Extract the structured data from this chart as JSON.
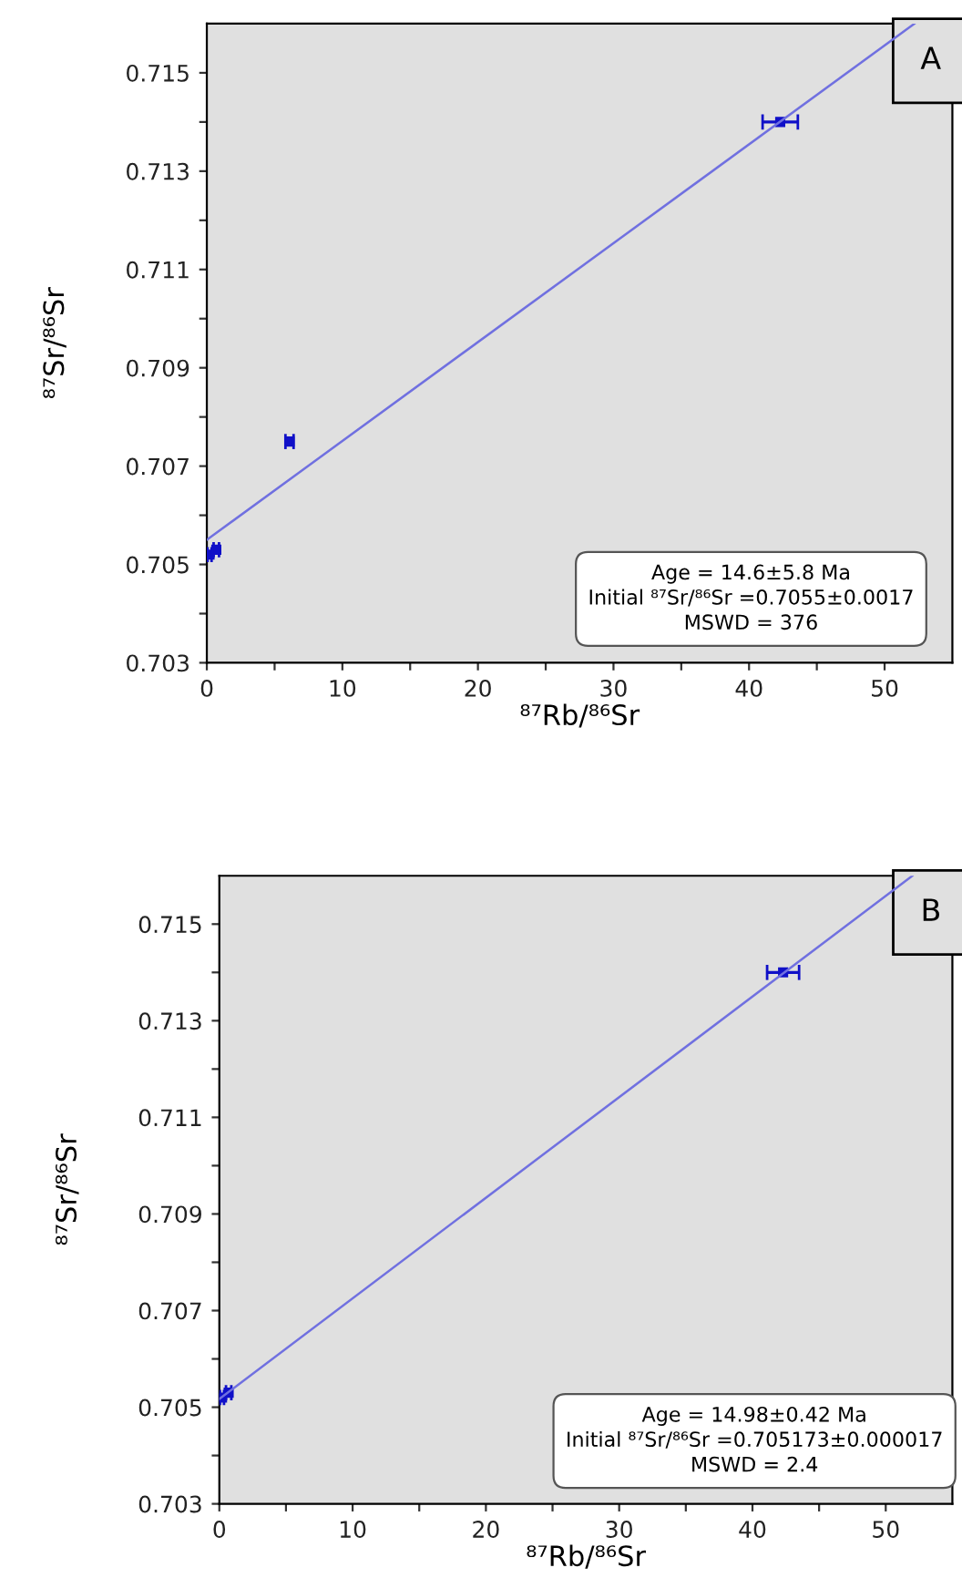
{
  "chart_data": [
    {
      "type": "scatter",
      "xlabel": "⁸⁷Rb/⁸⁶Sr",
      "ylabel": "⁸⁷Sr/⁸⁶Sr",
      "annotations": [
        "A",
        "Age = 14.6±5.8 Ma",
        "Initial ⁸⁷Sr/⁸⁶Sr =0.7055±0.0017",
        "MSWD = 376"
      ],
      "series": [
        {
          "color": "#1010c8",
          "marker": "square",
          "x": [
            0.2,
            0.7,
            6.1,
            42.3
          ],
          "values": [
            0.7052,
            0.7053,
            0.7075,
            0.714
          ],
          "xerrors": [
            0.15,
            0.2,
            0.3,
            1.3
          ]
        },
        {
          "type": "line",
          "color": "#7070e0",
          "x": [
            0,
            52.2
          ],
          "values": [
            0.7055,
            0.716
          ]
        }
      ],
      "xlim": [
        0,
        55
      ],
      "ylim": [
        0.703,
        0.716
      ],
      "xticks": [
        0,
        {
          "value": 5,
          "label": null
        },
        10,
        {
          "value": 15,
          "label": null
        },
        20,
        {
          "value": 25,
          "label": null
        },
        30,
        {
          "value": 35,
          "label": null
        },
        40,
        {
          "value": 45,
          "label": null
        },
        50
      ],
      "yticks": [
        0.703,
        {
          "value": 0.704,
          "label": null
        },
        0.705,
        {
          "value": 0.706,
          "label": null
        },
        0.707,
        {
          "value": 0.708,
          "label": null
        },
        0.709,
        {
          "value": 0.71,
          "label": null
        },
        0.711,
        {
          "value": 0.712,
          "label": null
        },
        0.713,
        {
          "value": 0.714,
          "label": null
        },
        0.715
      ],
      "grid": false,
      "legend": false
    },
    {
      "type": "scatter",
      "xlabel": "⁸⁷Rb/⁸⁶Sr",
      "ylabel": "⁸⁷Sr/⁸⁶Sr",
      "annotations": [
        "B",
        "Age = 14.98±0.42 Ma",
        "Initial ⁸⁷Sr/⁸⁶Sr =0.705173±0.000017",
        "MSWD = 2.4"
      ],
      "series": [
        {
          "color": "#1010c8",
          "marker": "square",
          "x": [
            0.2,
            0.7,
            42.3
          ],
          "values": [
            0.7052,
            0.7053,
            0.714
          ],
          "xerrors": [
            0.15,
            0.2,
            1.2
          ]
        },
        {
          "type": "line",
          "color": "#7070e0",
          "x": [
            0,
            52.0
          ],
          "values": [
            0.70517,
            0.716
          ]
        }
      ],
      "xlim": [
        0,
        55
      ],
      "ylim": [
        0.703,
        0.716
      ],
      "xticks": [
        0,
        {
          "value": 5,
          "label": null
        },
        10,
        {
          "value": 15,
          "label": null
        },
        20,
        {
          "value": 25,
          "label": null
        },
        30,
        {
          "value": 35,
          "label": null
        },
        40,
        {
          "value": 45,
          "label": null
        },
        50
      ],
      "yticks": [
        0.703,
        {
          "value": 0.704,
          "label": null
        },
        0.705,
        {
          "value": 0.706,
          "label": null
        },
        0.707,
        {
          "value": 0.708,
          "label": null
        },
        0.709,
        {
          "value": 0.71,
          "label": null
        },
        0.711,
        {
          "value": 0.712,
          "label": null
        },
        0.713,
        {
          "value": 0.714,
          "label": null
        },
        0.715
      ],
      "grid": false,
      "legend": false
    }
  ]
}
